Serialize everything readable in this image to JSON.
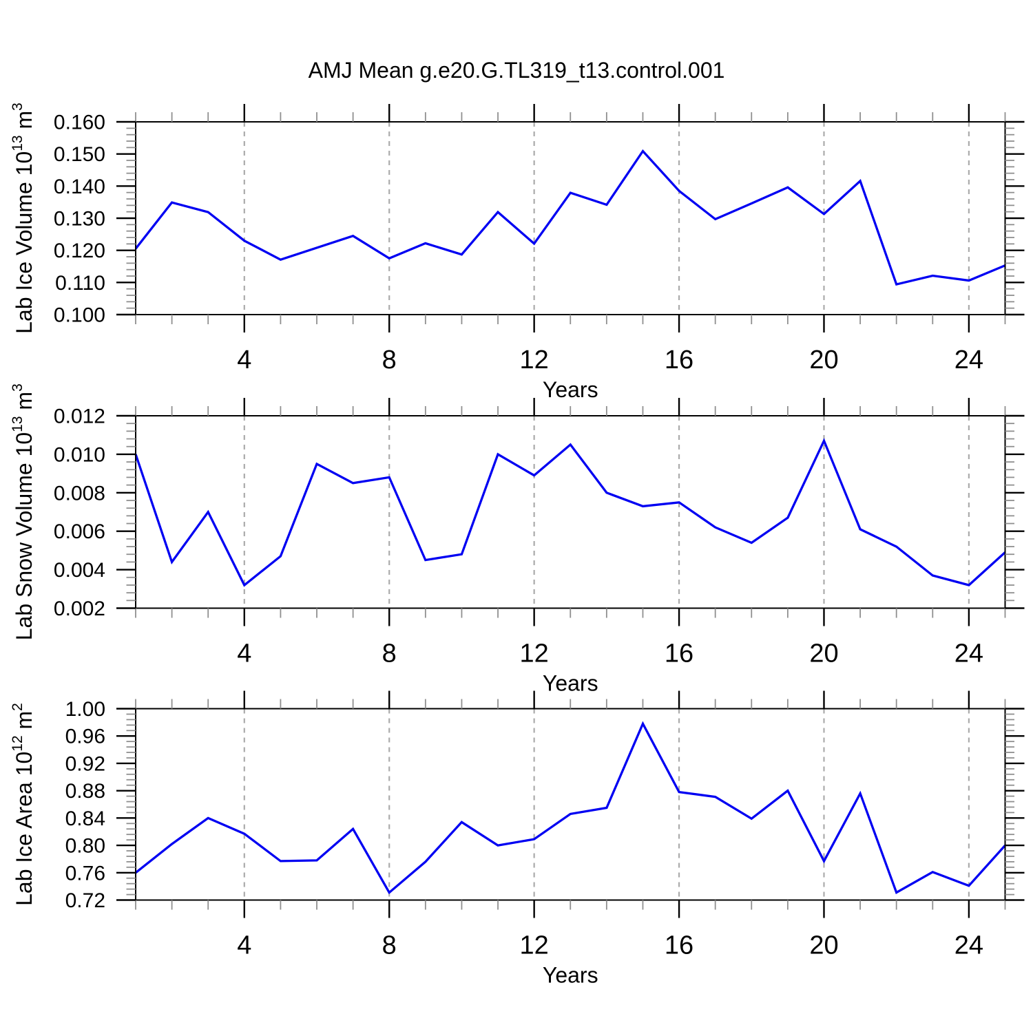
{
  "title": "AMJ Mean g.e20.G.TL319_t13.control.001",
  "colors": {
    "line": "#0000F2",
    "grid": "#ABABAB",
    "axis": "#000000",
    "minor_tick": "#8F8F8F"
  },
  "chart_data": [
    {
      "type": "line",
      "xlabel": "Years",
      "ylabel": {
        "prefix": "Lab Ice Volume 10",
        "sup1": "13",
        "mid": " m",
        "sup2": "3"
      },
      "xlim": [
        1,
        25
      ],
      "ylim": [
        0.1,
        0.16
      ],
      "xticks": [
        4,
        8,
        12,
        16,
        20,
        24
      ],
      "xtick_labels": [
        "4",
        "8",
        "12",
        "16",
        "20",
        "24"
      ],
      "ytick_labels": [
        "0.100",
        "0.110",
        "0.120",
        "0.130",
        "0.140",
        "0.150",
        "0.160"
      ],
      "y_minor_intervals": 30,
      "x": [
        1,
        2,
        3,
        4,
        5,
        6,
        7,
        8,
        9,
        10,
        11,
        12,
        13,
        14,
        15,
        16,
        17,
        18,
        19,
        20,
        21,
        22,
        23,
        24,
        25
      ],
      "values": [
        0.1205,
        0.1349,
        0.1319,
        0.123,
        0.1171,
        0.1208,
        0.1245,
        0.1175,
        0.1222,
        0.1187,
        0.1319,
        0.1221,
        0.1379,
        0.1342,
        0.1509,
        0.1385,
        0.1297,
        0.1346,
        0.1396,
        0.1313,
        0.1416,
        0.1094,
        0.1121,
        0.1106,
        0.1153
      ]
    },
    {
      "type": "line",
      "xlabel": "Years",
      "ylabel": {
        "prefix": "Lab Snow Volume 10",
        "sup1": "13",
        "mid": " m",
        "sup2": "3"
      },
      "xlim": [
        1,
        25
      ],
      "ylim": [
        0.002,
        0.012
      ],
      "xticks": [
        4,
        8,
        12,
        16,
        20,
        24
      ],
      "xtick_labels": [
        "4",
        "8",
        "12",
        "16",
        "20",
        "24"
      ],
      "ytick_labels": [
        "0.002",
        "0.004",
        "0.006",
        "0.008",
        "0.010",
        "0.012"
      ],
      "y_minor_intervals": 25,
      "x": [
        1,
        2,
        3,
        4,
        5,
        6,
        7,
        8,
        9,
        10,
        11,
        12,
        13,
        14,
        15,
        16,
        17,
        18,
        19,
        20,
        21,
        22,
        23,
        24,
        25
      ],
      "values": [
        0.01,
        0.0044,
        0.007,
        0.0032,
        0.0047,
        0.0095,
        0.0085,
        0.0088,
        0.0045,
        0.0048,
        0.01,
        0.0089,
        0.0105,
        0.008,
        0.0073,
        0.0075,
        0.0062,
        0.0054,
        0.0067,
        0.0107,
        0.0061,
        0.0052,
        0.0037,
        0.0032,
        0.0049
      ]
    },
    {
      "type": "line",
      "xlabel": "Years",
      "ylabel": {
        "prefix": "Lab Ice Area 10",
        "sup1": "12",
        "mid": " m",
        "sup2": "2"
      },
      "xlim": [
        1,
        25
      ],
      "ylim": [
        0.72,
        1.0
      ],
      "xticks": [
        4,
        8,
        12,
        16,
        20,
        24
      ],
      "xtick_labels": [
        "4",
        "8",
        "12",
        "16",
        "20",
        "24"
      ],
      "ytick_labels": [
        "0.72",
        "0.76",
        "0.80",
        "0.84",
        "0.88",
        "0.92",
        "0.96",
        "1.00"
      ],
      "y_minor_intervals": 35,
      "x": [
        1,
        2,
        3,
        4,
        5,
        6,
        7,
        8,
        9,
        10,
        11,
        12,
        13,
        14,
        15,
        16,
        17,
        18,
        19,
        20,
        21,
        22,
        23,
        24,
        25
      ],
      "values": [
        0.76,
        0.802,
        0.84,
        0.817,
        0.777,
        0.778,
        0.824,
        0.731,
        0.776,
        0.834,
        0.8,
        0.809,
        0.846,
        0.855,
        0.978,
        0.878,
        0.871,
        0.839,
        0.88,
        0.777,
        0.876,
        0.731,
        0.761,
        0.741,
        0.8
      ]
    }
  ]
}
